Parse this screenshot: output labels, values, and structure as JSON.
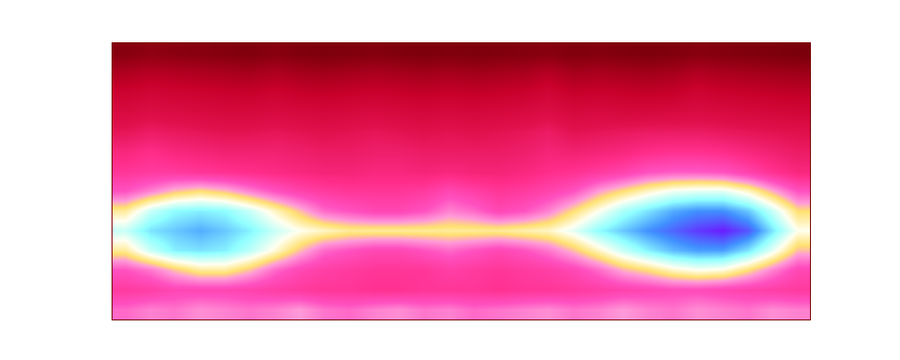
{
  "chart_data": {
    "type": "heatmap",
    "cells": [
      [
        62,
        64,
        63,
        65,
        64,
        63,
        64,
        66,
        63,
        62,
        64,
        65,
        63,
        64,
        62,
        63,
        64,
        65,
        63,
        64,
        66,
        64,
        63,
        65,
        64,
        63,
        65,
        64
      ],
      [
        55,
        56,
        58,
        58,
        58,
        57,
        56,
        55,
        54,
        54,
        53,
        53,
        54,
        54,
        54,
        53,
        54,
        54,
        55,
        56,
        57,
        58,
        59,
        59,
        58,
        57,
        56,
        55
      ],
      [
        60,
        63,
        68,
        72,
        72,
        68,
        62,
        58,
        56,
        55,
        54,
        54,
        54,
        56,
        55,
        54,
        55,
        56,
        58,
        62,
        67,
        70,
        74,
        76,
        75,
        70,
        64,
        58
      ],
      [
        72,
        80,
        85,
        86,
        85,
        81,
        75,
        68,
        62,
        60,
        58,
        58,
        60,
        62,
        60,
        58,
        60,
        63,
        68,
        74,
        80,
        85,
        89,
        91,
        91,
        86,
        78,
        68
      ],
      [
        80,
        86,
        88,
        90,
        88,
        85,
        80,
        76,
        74,
        72,
        72,
        72,
        72,
        72,
        72,
        72,
        73,
        74,
        78,
        84,
        88,
        92,
        95,
        98,
        100,
        96,
        86,
        76
      ],
      [
        72,
        80,
        84,
        85,
        84,
        80,
        74,
        68,
        62,
        60,
        58,
        58,
        60,
        64,
        62,
        58,
        60,
        64,
        70,
        76,
        82,
        86,
        90,
        92,
        92,
        88,
        80,
        70
      ],
      [
        60,
        64,
        68,
        70,
        68,
        64,
        60,
        57,
        55,
        54,
        54,
        54,
        55,
        58,
        56,
        54,
        55,
        57,
        60,
        66,
        70,
        74,
        77,
        78,
        78,
        74,
        67,
        60
      ],
      [
        54,
        55,
        55,
        54,
        53,
        52,
        51,
        50,
        49,
        49,
        50,
        50,
        49,
        50,
        49,
        49,
        50,
        52,
        53,
        55,
        57,
        60,
        61,
        61,
        60,
        57,
        53,
        50
      ],
      [
        50,
        52,
        50,
        49,
        48,
        48,
        48,
        47,
        46,
        46,
        47,
        47,
        46,
        46,
        46,
        46,
        47,
        49,
        48,
        49,
        50,
        52,
        53,
        53,
        52,
        50,
        48,
        46
      ],
      [
        44,
        46,
        45,
        44,
        43,
        43,
        44,
        43,
        42,
        43,
        44,
        43,
        42,
        43,
        42,
        43,
        44,
        46,
        43,
        44,
        45,
        46,
        46,
        46,
        45,
        44,
        43,
        42
      ],
      [
        38,
        40,
        39,
        38,
        37,
        37,
        38,
        37,
        36,
        37,
        38,
        37,
        36,
        37,
        36,
        37,
        38,
        40,
        37,
        38,
        37,
        37,
        38,
        39,
        38,
        37,
        36,
        35
      ],
      [
        32,
        34,
        33,
        32,
        31,
        30,
        32,
        30,
        29,
        30,
        31,
        30,
        29,
        30,
        29,
        30,
        31,
        34,
        30,
        31,
        30,
        29,
        30,
        33,
        31,
        30,
        29,
        28
      ],
      [
        24,
        26,
        25,
        24,
        23,
        22,
        24,
        22,
        21,
        22,
        23,
        22,
        21,
        22,
        21,
        22,
        23,
        26,
        22,
        23,
        22,
        21,
        22,
        25,
        23,
        22,
        21,
        20
      ],
      [
        14,
        16,
        15,
        14,
        13,
        12,
        14,
        12,
        11,
        12,
        13,
        12,
        11,
        12,
        11,
        12,
        13,
        14,
        12,
        13,
        12,
        11,
        12,
        14,
        13,
        12,
        11,
        10
      ]
    ],
    "xlim": [
      -0.5,
      27.5
    ],
    "ylim": [
      -0.5,
      13.5
    ],
    "zlim": [
      0,
      100
    ],
    "tick_labels": false,
    "grid": false
  }
}
